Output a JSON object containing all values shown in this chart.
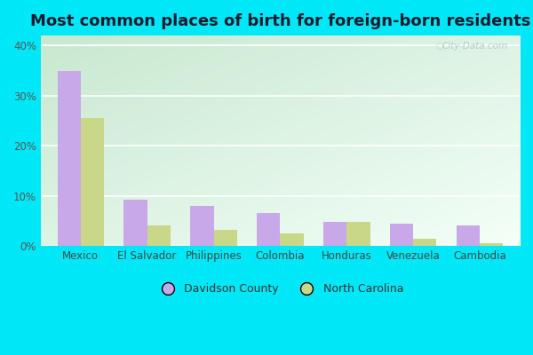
{
  "title": "Most common places of birth for foreign-born residents",
  "categories": [
    "Mexico",
    "El Salvador",
    "Philippines",
    "Colombia",
    "Honduras",
    "Venezuela",
    "Cambodia"
  ],
  "davidson_county": [
    35.0,
    9.2,
    8.0,
    6.5,
    4.8,
    4.5,
    4.0
  ],
  "north_carolina": [
    25.5,
    4.0,
    3.2,
    2.5,
    4.8,
    1.5,
    0.5
  ],
  "bar_color_davidson": "#c8a8e8",
  "bar_color_nc": "#c8d888",
  "outer_bg": "#00e8f8",
  "bg_gradient_tl": "#c0e8d0",
  "bg_gradient_br": "#f8fff8",
  "yticks": [
    0,
    10,
    20,
    30,
    40
  ],
  "ylim": [
    0,
    42
  ],
  "legend_davidson": "Davidson County",
  "legend_nc": "North Carolina",
  "watermark": "City-Data.com",
  "title_fontsize": 13,
  "tick_fontsize": 8.5,
  "bar_width": 0.35
}
